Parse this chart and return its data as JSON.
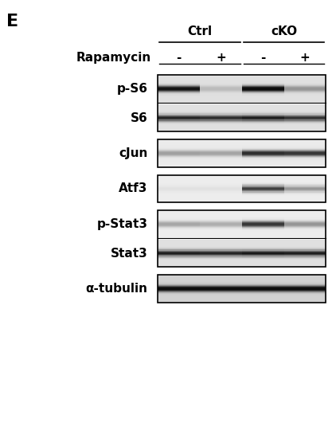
{
  "title_letter": "E",
  "header_groups": [
    "Ctrl",
    "cKO"
  ],
  "rapamycin_label": "Rapamycin",
  "rapamycin_signs": [
    "-",
    "+",
    "-",
    "+"
  ],
  "lanes": 4,
  "bands": [
    {
      "label": "p-S6",
      "group": "pS6_S6",
      "intensities": [
        0.82,
        0.15,
        0.9,
        0.3
      ],
      "background": 0.88,
      "band_color": [
        0.25,
        0.25,
        0.25
      ]
    },
    {
      "label": "S6",
      "group": "pS6_S6",
      "intensities": [
        0.75,
        0.72,
        0.78,
        0.7
      ],
      "background": 0.88,
      "band_color": [
        0.25,
        0.25,
        0.25
      ]
    },
    {
      "label": "cJun",
      "group": "cJun",
      "intensities": [
        0.3,
        0.28,
        0.75,
        0.72
      ],
      "background": 0.92,
      "band_color": [
        0.35,
        0.35,
        0.35
      ]
    },
    {
      "label": "Atf3",
      "group": "Atf3",
      "intensities": [
        0.05,
        0.05,
        0.7,
        0.35
      ],
      "background": 0.93,
      "band_color": [
        0.3,
        0.3,
        0.3
      ]
    },
    {
      "label": "p-Stat3",
      "group": "pStat3_Stat3",
      "intensities": [
        0.28,
        0.25,
        0.72,
        0.35
      ],
      "background": 0.93,
      "band_color": [
        0.35,
        0.35,
        0.35
      ]
    },
    {
      "label": "Stat3",
      "group": "pStat3_Stat3",
      "intensities": [
        0.78,
        0.76,
        0.8,
        0.78
      ],
      "background": 0.88,
      "band_color": [
        0.25,
        0.25,
        0.25
      ]
    },
    {
      "label": "α-tubulin",
      "group": "tubulin",
      "intensities": [
        0.82,
        0.82,
        0.82,
        0.82
      ],
      "background": 0.82,
      "band_color": [
        0.2,
        0.2,
        0.2
      ]
    }
  ],
  "box_groups": [
    {
      "bands": [
        0,
        1
      ]
    },
    {
      "bands": [
        2
      ]
    },
    {
      "bands": [
        3
      ]
    },
    {
      "bands": [
        4,
        5
      ]
    },
    {
      "bands": [
        6
      ]
    }
  ],
  "fig_bg": "#ffffff",
  "label_fontsize": 11,
  "header_fontsize": 11,
  "rapamycin_fontsize": 11
}
